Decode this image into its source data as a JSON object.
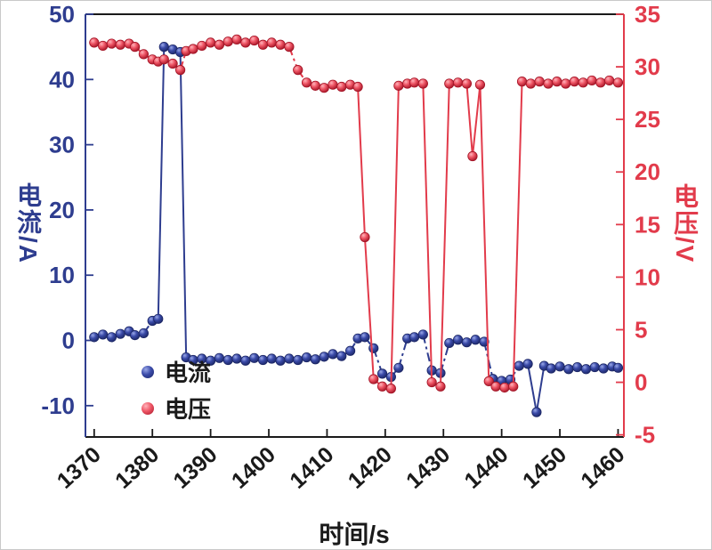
{
  "chart_data": {
    "type": "line",
    "title": "",
    "xlabel": "时间/s",
    "grid": false,
    "legend_position": "lower-left-inside",
    "frame_color": "#1a1a1a",
    "x_range": [
      1368.5,
      1461
    ],
    "x_ticks": [
      1370,
      1380,
      1390,
      1400,
      1410,
      1420,
      1430,
      1440,
      1450,
      1460
    ],
    "left_axis": {
      "label": "电流/A",
      "color": "#2e3d8f",
      "range": [
        -14.8,
        50
      ],
      "ticks": [
        -10,
        0,
        10,
        20,
        30,
        40,
        50
      ]
    },
    "right_axis": {
      "label": "电压/V",
      "color": "#e23b4b",
      "range": [
        -5.2,
        35
      ],
      "ticks": [
        -5,
        0,
        5,
        10,
        15,
        20,
        25,
        30,
        35
      ]
    },
    "series": [
      {
        "name": "电流",
        "axis": "left",
        "unit": "A",
        "color": "#2e3d8f",
        "marker": {
          "highlight": "#9aa8e8",
          "mid": "#3a4aa8",
          "dark": "#1c2766"
        },
        "points": [
          [
            1370,
            0.5
          ],
          [
            1371.5,
            0.9
          ],
          [
            1373,
            0.5
          ],
          [
            1374.5,
            1.0
          ],
          [
            1376,
            1.4
          ],
          [
            1377,
            0.8
          ],
          [
            1378.5,
            1.1
          ],
          [
            1380,
            3.0
          ],
          [
            1381,
            3.3
          ],
          [
            1382,
            45.0
          ],
          [
            1383.5,
            44.6
          ],
          [
            1384.8,
            44.2
          ],
          [
            1385.8,
            -2.6
          ],
          [
            1387,
            -3.0
          ],
          [
            1388.5,
            -2.8
          ],
          [
            1390,
            -3.1
          ],
          [
            1391.5,
            -2.7
          ],
          [
            1393,
            -3.0
          ],
          [
            1394.5,
            -2.8
          ],
          [
            1396,
            -3.1
          ],
          [
            1397.5,
            -2.7
          ],
          [
            1399,
            -3.0
          ],
          [
            1400.5,
            -2.8
          ],
          [
            1402,
            -3.1
          ],
          [
            1403.5,
            -2.8
          ],
          [
            1405,
            -3.0
          ],
          [
            1406.5,
            -2.6
          ],
          [
            1408,
            -2.9
          ],
          [
            1409.5,
            -2.5
          ],
          [
            1411,
            -2.1
          ],
          [
            1412.5,
            -2.4
          ],
          [
            1414,
            -1.6
          ],
          [
            1415.3,
            0.3
          ],
          [
            1416.5,
            0.5
          ],
          [
            1418,
            -1.2
          ],
          [
            1419.5,
            -5.1
          ],
          [
            1421,
            -5.6
          ],
          [
            1422.3,
            -4.2
          ],
          [
            1423.8,
            0.3
          ],
          [
            1425,
            0.5
          ],
          [
            1426.5,
            0.9
          ],
          [
            1428,
            -4.6
          ],
          [
            1429.5,
            -5.0
          ],
          [
            1431,
            -0.4
          ],
          [
            1432.5,
            0.1
          ],
          [
            1434,
            -0.3
          ],
          [
            1435.5,
            0.1
          ],
          [
            1437,
            -0.2
          ],
          [
            1438.5,
            -5.9
          ],
          [
            1440,
            -6.2
          ],
          [
            1441.5,
            -6.0
          ],
          [
            1443,
            -3.9
          ],
          [
            1444.5,
            -3.6
          ],
          [
            1446,
            -11.0
          ],
          [
            1447.3,
            -3.9
          ],
          [
            1448.5,
            -4.3
          ],
          [
            1450,
            -4.0
          ],
          [
            1451.5,
            -4.4
          ],
          [
            1453,
            -4.1
          ],
          [
            1454.5,
            -4.4
          ],
          [
            1456,
            -4.1
          ],
          [
            1457.5,
            -4.3
          ],
          [
            1459,
            -4.0
          ],
          [
            1460,
            -4.2
          ]
        ]
      },
      {
        "name": "电压",
        "axis": "right",
        "unit": "V",
        "color": "#e23b4b",
        "marker": {
          "highlight": "#ffb3ba",
          "mid": "#ee5565",
          "dark": "#a31325"
        },
        "points": [
          [
            1370,
            32.3
          ],
          [
            1371.5,
            32.0
          ],
          [
            1373,
            32.2
          ],
          [
            1374.5,
            32.1
          ],
          [
            1376,
            32.2
          ],
          [
            1377,
            31.9
          ],
          [
            1378.5,
            31.2
          ],
          [
            1380,
            30.7
          ],
          [
            1381,
            30.5
          ],
          [
            1382,
            30.7
          ],
          [
            1383.5,
            30.3
          ],
          [
            1384.8,
            29.7
          ],
          [
            1385.8,
            31.5
          ],
          [
            1387,
            31.7
          ],
          [
            1388.5,
            32.0
          ],
          [
            1390,
            32.3
          ],
          [
            1391.5,
            32.1
          ],
          [
            1393,
            32.4
          ],
          [
            1394.5,
            32.6
          ],
          [
            1396,
            32.3
          ],
          [
            1397.5,
            32.5
          ],
          [
            1399,
            32.1
          ],
          [
            1400.5,
            32.3
          ],
          [
            1402,
            32.1
          ],
          [
            1403.5,
            31.9
          ],
          [
            1405,
            29.7
          ],
          [
            1406.5,
            28.5
          ],
          [
            1408,
            28.2
          ],
          [
            1409.5,
            28.0
          ],
          [
            1411,
            28.3
          ],
          [
            1412.5,
            28.1
          ],
          [
            1414,
            28.3
          ],
          [
            1415.3,
            28.1
          ],
          [
            1416.5,
            13.8
          ],
          [
            1418,
            0.3
          ],
          [
            1419.5,
            -0.4
          ],
          [
            1421,
            -0.6
          ],
          [
            1422.3,
            28.2
          ],
          [
            1423.8,
            28.4
          ],
          [
            1425,
            28.5
          ],
          [
            1426.5,
            28.4
          ],
          [
            1428,
            0.0
          ],
          [
            1429.5,
            -0.4
          ],
          [
            1431,
            28.4
          ],
          [
            1432.5,
            28.5
          ],
          [
            1434,
            28.4
          ],
          [
            1435,
            21.5
          ],
          [
            1436.3,
            28.3
          ],
          [
            1437.8,
            0.1
          ],
          [
            1439,
            -0.4
          ],
          [
            1440.5,
            -0.5
          ],
          [
            1442,
            -0.4
          ],
          [
            1443.5,
            28.6
          ],
          [
            1445,
            28.4
          ],
          [
            1446.5,
            28.6
          ],
          [
            1448,
            28.4
          ],
          [
            1449.5,
            28.6
          ],
          [
            1451,
            28.4
          ],
          [
            1452.5,
            28.6
          ],
          [
            1454,
            28.5
          ],
          [
            1455.5,
            28.7
          ],
          [
            1457,
            28.5
          ],
          [
            1458.5,
            28.7
          ],
          [
            1460,
            28.5
          ]
        ]
      }
    ]
  }
}
